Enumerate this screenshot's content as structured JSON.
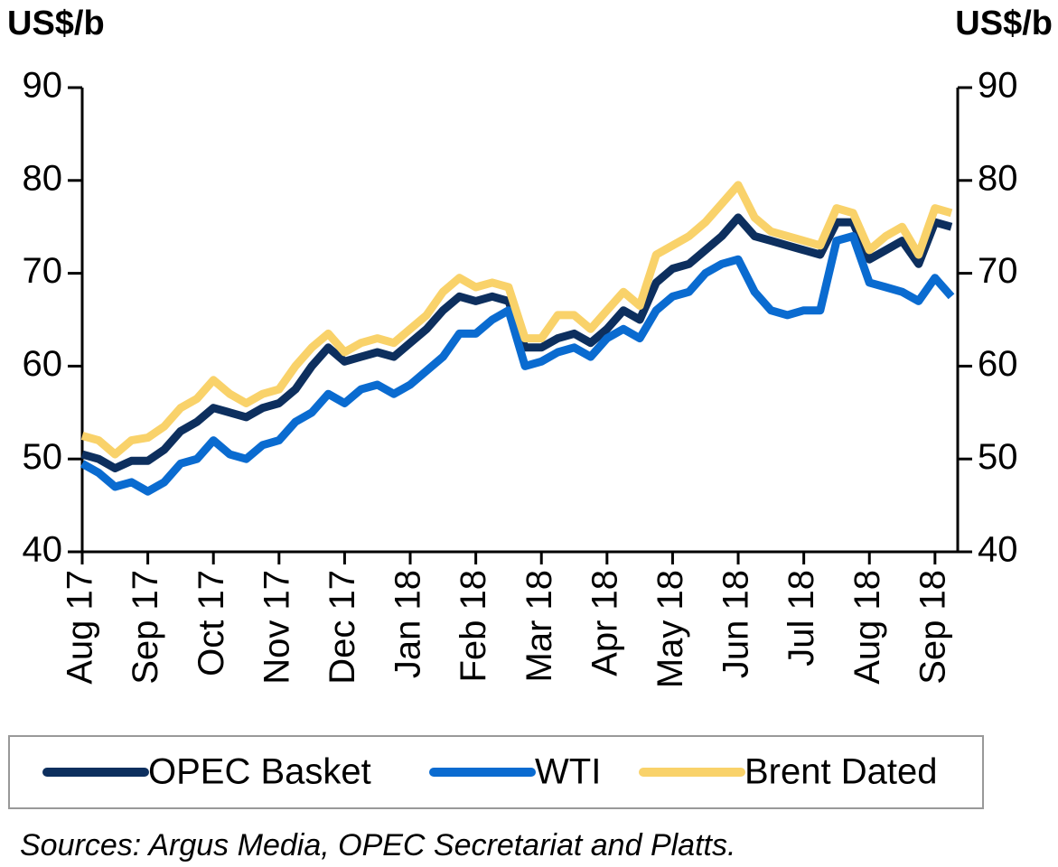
{
  "chart_data": {
    "type": "line",
    "ylabel": "US$/b",
    "y2label": "US$/b",
    "categories": [
      "Aug 17",
      null,
      null,
      null,
      "Sep 17",
      null,
      null,
      null,
      "Oct 17",
      null,
      null,
      null,
      "Nov 17",
      null,
      null,
      null,
      "Dec 17",
      null,
      null,
      null,
      "Jan 18",
      null,
      null,
      null,
      "Feb 18",
      null,
      null,
      null,
      "Mar 18",
      null,
      null,
      null,
      "Apr 18",
      null,
      null,
      null,
      "May 18",
      null,
      null,
      null,
      "Jun 18",
      null,
      null,
      null,
      "Jul 18",
      null,
      null,
      null,
      "Aug 18",
      null,
      null,
      null,
      "Sep 18",
      null
    ],
    "series": [
      {
        "name": "OPEC Basket",
        "color": "#0d2f5e",
        "values": [
          50.5,
          50,
          49,
          49.8,
          49.8,
          51,
          53,
          54,
          55.5,
          55,
          54.5,
          55.5,
          56,
          57.5,
          60,
          62,
          60.5,
          61,
          61.5,
          61,
          62.5,
          64,
          66,
          67.5,
          67,
          67.5,
          67,
          62,
          62,
          63,
          63.5,
          62.5,
          64,
          66,
          65,
          69,
          70.5,
          71,
          72.5,
          74,
          76,
          74,
          73.5,
          73,
          72.5,
          72,
          75.5,
          75.5,
          71.5,
          72.5,
          73.5,
          71,
          75.5,
          75
        ]
      },
      {
        "name": "WTI",
        "color": "#0a6bd0",
        "values": [
          49.5,
          48.5,
          47,
          47.5,
          46.5,
          47.5,
          49.5,
          50,
          52,
          50.5,
          50,
          51.5,
          52,
          54,
          55,
          57,
          56,
          57.5,
          58,
          57,
          58,
          59.5,
          61,
          63.5,
          63.5,
          65,
          66,
          60,
          60.5,
          61.5,
          62,
          61,
          63,
          64,
          63,
          66,
          67.5,
          68,
          70,
          71,
          71.5,
          68,
          66,
          65.5,
          66,
          66,
          73.5,
          74,
          69,
          68.5,
          68,
          67,
          69.5,
          67.5
        ]
      },
      {
        "name": "Brent Dated",
        "color": "#f9d26a",
        "values": [
          52.5,
          52,
          50.5,
          52,
          52.3,
          53.5,
          55.5,
          56.5,
          58.5,
          57,
          56,
          57,
          57.5,
          60,
          62,
          63.5,
          61.5,
          62.5,
          63,
          62.5,
          64,
          65.5,
          68,
          69.5,
          68.5,
          69,
          68.5,
          63,
          63,
          65.5,
          65.5,
          64,
          66,
          68,
          66.5,
          72,
          73,
          74,
          75.5,
          77.5,
          79.5,
          76,
          74.5,
          74,
          73.5,
          73,
          77,
          76.5,
          72.5,
          74,
          75,
          72,
          77,
          76.5
        ]
      }
    ],
    "ylim": [
      40,
      90
    ],
    "yticks": [
      40,
      50,
      60,
      70,
      80,
      90
    ],
    "y2lim": [
      40,
      90
    ],
    "y2ticks": [
      40,
      50,
      60,
      70,
      80,
      90
    ],
    "legend": "bottom",
    "source": "Sources: Argus Media, OPEC Secretariat and Platts."
  }
}
